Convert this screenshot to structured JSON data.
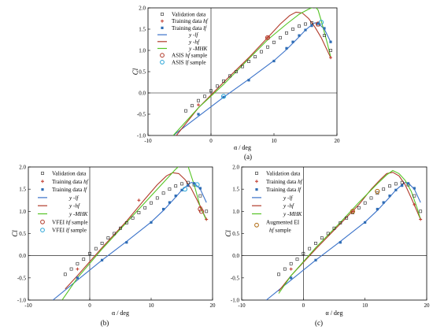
{
  "figure": {
    "panel_labels": [
      "(a)",
      "(b)",
      "(c)"
    ]
  },
  "colors": {
    "validation": "#222222",
    "train_hf": "#c0392b",
    "train_lf": "#2f6db5",
    "y_lf": "#3a72c9",
    "y_hf": "#b13a2a",
    "y_mhk": "#55c424",
    "sample_hf": "#b13a2a",
    "sample_lf": "#2aa5d8",
    "sample_ei": "#b06a10"
  },
  "chart_data": [
    {
      "type": "line",
      "panel": "(a)",
      "xlabel": "α / deg",
      "ylabel": "Cl",
      "xlim": [
        -10,
        20
      ],
      "ylim": [
        -1.0,
        2.0
      ],
      "xticks": [
        -10,
        0,
        10,
        20
      ],
      "yticks": [
        -1.0,
        -0.5,
        0.0,
        0.5,
        1.0,
        1.5,
        2.0
      ],
      "legend": {
        "placement": "top-left",
        "entries": [
          "Validation data",
          "Training data hf",
          "Training data lf",
          "y -lf",
          "y -hf",
          "y -MHK",
          "ASIS hf sample",
          "ASIS lf sample"
        ]
      },
      "validation": {
        "x": [
          -4,
          -3,
          -2,
          -1,
          0,
          1,
          2,
          3,
          4,
          5,
          6,
          7,
          8,
          9,
          10,
          11,
          12,
          13,
          14,
          15,
          16,
          17,
          18,
          19
        ],
        "y": [
          -0.42,
          -0.3,
          -0.18,
          -0.08,
          0.05,
          0.16,
          0.28,
          0.4,
          0.5,
          0.62,
          0.74,
          0.85,
          0.97,
          1.08,
          1.19,
          1.3,
          1.41,
          1.5,
          1.57,
          1.62,
          1.65,
          1.6,
          1.35,
          1.0
        ]
      },
      "training_hf": {
        "x": [
          -2,
          9,
          19
        ],
        "y": [
          -0.28,
          1.3,
          0.83
        ]
      },
      "training_lf": {
        "x": [
          -2,
          2,
          6,
          10,
          12,
          13,
          14,
          15,
          16,
          17,
          18,
          19
        ],
        "y": [
          -0.5,
          -0.1,
          0.3,
          0.75,
          1.05,
          1.2,
          1.35,
          1.48,
          1.58,
          1.63,
          1.52,
          1.2
        ]
      },
      "y_lf": {
        "x": [
          -6,
          -2,
          2,
          6,
          10,
          12,
          14,
          15,
          16,
          16.5,
          17,
          18,
          19
        ],
        "y": [
          -1.0,
          -0.55,
          -0.1,
          0.32,
          0.76,
          1.02,
          1.32,
          1.48,
          1.6,
          1.65,
          1.64,
          1.5,
          1.2
        ]
      },
      "y_hf": {
        "x": [
          -5.5,
          -2,
          2,
          6,
          9,
          11,
          12.5,
          13.5,
          14.5,
          15.5,
          16.5,
          17.5,
          19
        ],
        "y": [
          -1.0,
          -0.35,
          0.25,
          0.83,
          1.3,
          1.62,
          1.82,
          1.9,
          1.88,
          1.75,
          1.55,
          1.3,
          0.83
        ]
      },
      "y_mhk": {
        "x": [
          -6,
          -2,
          2,
          6,
          9,
          12,
          14,
          15.5,
          16.5,
          17,
          17.5,
          18.5,
          19
        ],
        "y": [
          -1.0,
          -0.35,
          0.2,
          0.8,
          1.25,
          1.62,
          1.85,
          1.97,
          2.03,
          1.95,
          1.7,
          1.15,
          0.85
        ]
      },
      "samples_primary": {
        "x": [
          9,
          17
        ],
        "y": [
          1.3,
          1.62
        ]
      },
      "samples_secondary": {
        "x": [
          2,
          17.5
        ],
        "y": [
          -0.08,
          1.66
        ]
      }
    },
    {
      "type": "line",
      "panel": "(b)",
      "xlabel": "α / deg",
      "ylabel": "Cl",
      "xlim": [
        -10,
        20
      ],
      "ylim": [
        -1.0,
        2.0
      ],
      "xticks": [
        -10,
        0,
        10,
        20
      ],
      "yticks": [
        -1.0,
        -0.5,
        0.0,
        0.5,
        1.0,
        1.5,
        2.0
      ],
      "legend": {
        "placement": "top-left",
        "entries": [
          "Validation data",
          "Training data hf",
          "Training data lf",
          "y -lf",
          "y -hf",
          "y -MHK",
          "VFEI hf sample",
          "VFEI lf sample"
        ]
      },
      "validation": {
        "x": [
          -4,
          -3,
          -2,
          -1,
          0,
          1,
          2,
          3,
          4,
          5,
          6,
          7,
          8,
          9,
          10,
          11,
          12,
          13,
          14,
          15,
          16,
          17,
          18,
          19
        ],
        "y": [
          -0.42,
          -0.3,
          -0.18,
          -0.08,
          0.05,
          0.16,
          0.28,
          0.4,
          0.5,
          0.62,
          0.74,
          0.85,
          0.97,
          1.08,
          1.19,
          1.3,
          1.41,
          1.5,
          1.57,
          1.62,
          1.65,
          1.6,
          1.35,
          1.0
        ]
      },
      "training_hf": {
        "x": [
          -2,
          8,
          18,
          19
        ],
        "y": [
          -0.3,
          1.25,
          1.1,
          0.82
        ]
      },
      "training_lf": {
        "x": [
          -2,
          2,
          6,
          10,
          12,
          13,
          14,
          15,
          16,
          17,
          18
        ],
        "y": [
          -0.5,
          -0.1,
          0.3,
          0.75,
          1.05,
          1.2,
          1.35,
          1.48,
          1.58,
          1.63,
          1.52
        ]
      },
      "y_lf": {
        "x": [
          -6,
          -2,
          2,
          6,
          10,
          12,
          14,
          15,
          16,
          16.5,
          17,
          18,
          19
        ],
        "y": [
          -1.0,
          -0.55,
          -0.1,
          0.32,
          0.76,
          1.02,
          1.32,
          1.48,
          1.6,
          1.65,
          1.64,
          1.5,
          1.2
        ]
      },
      "y_hf": {
        "x": [
          -4,
          -2,
          2,
          6,
          9,
          11,
          12.5,
          13.5,
          14.5,
          15.5,
          16.5,
          17.5,
          19
        ],
        "y": [
          -0.75,
          -0.45,
          0.18,
          0.78,
          1.28,
          1.6,
          1.8,
          1.87,
          1.85,
          1.72,
          1.52,
          1.25,
          0.82
        ]
      },
      "y_mhk": {
        "x": [
          -4.5,
          -2,
          2,
          6,
          9,
          12,
          14,
          15,
          15.5,
          16,
          17,
          18,
          19
        ],
        "y": [
          -1.0,
          -0.5,
          0.15,
          0.75,
          1.2,
          1.65,
          1.95,
          2.08,
          2.12,
          2.02,
          1.6,
          1.1,
          0.8
        ]
      },
      "samples_primary": {
        "x": [
          18,
          18.2
        ],
        "y": [
          1.05,
          1.0
        ]
      },
      "samples_secondary": {
        "x": [
          15.5,
          17.5
        ],
        "y": [
          1.5,
          1.6
        ]
      }
    },
    {
      "type": "line",
      "panel": "(c)",
      "xlabel": "α / deg",
      "ylabel": "Cl",
      "xlim": [
        -10,
        20
      ],
      "ylim": [
        -1.0,
        2.0
      ],
      "xticks": [
        -10,
        0,
        10,
        20
      ],
      "yticks": [
        -1.0,
        -0.5,
        0.0,
        0.5,
        1.0,
        1.5,
        2.0
      ],
      "legend": {
        "placement": "top-left",
        "entries": [
          "Validation data",
          "Training data hf",
          "Training data lf",
          "y -lf",
          "y -hf",
          "y -MHK",
          "Augmented EI",
          "hf sample"
        ]
      },
      "validation": {
        "x": [
          -4,
          -3,
          -2,
          -1,
          0,
          1,
          2,
          3,
          4,
          5,
          6,
          7,
          8,
          9,
          10,
          11,
          12,
          13,
          14,
          15,
          16,
          17,
          18,
          19
        ],
        "y": [
          -0.42,
          -0.3,
          -0.18,
          -0.08,
          0.05,
          0.16,
          0.28,
          0.4,
          0.5,
          0.62,
          0.74,
          0.85,
          0.97,
          1.08,
          1.19,
          1.3,
          1.41,
          1.5,
          1.57,
          1.62,
          1.65,
          1.6,
          1.35,
          1.0
        ]
      },
      "training_hf": {
        "x": [
          -2,
          8,
          18,
          19
        ],
        "y": [
          -0.3,
          1.0,
          1.15,
          0.82
        ]
      },
      "training_lf": {
        "x": [
          -2,
          2,
          6,
          10,
          12,
          13,
          14,
          15,
          16,
          17,
          18
        ],
        "y": [
          -0.5,
          -0.1,
          0.3,
          0.75,
          1.05,
          1.2,
          1.35,
          1.48,
          1.58,
          1.63,
          1.52
        ]
      },
      "y_lf": {
        "x": [
          -6,
          -2,
          2,
          6,
          10,
          12,
          14,
          15,
          16,
          16.5,
          17,
          18,
          19
        ],
        "y": [
          -1.0,
          -0.55,
          -0.1,
          0.32,
          0.76,
          1.02,
          1.32,
          1.48,
          1.6,
          1.65,
          1.64,
          1.5,
          1.2
        ]
      },
      "y_hf": {
        "x": [
          -4,
          -2,
          2,
          6,
          9,
          11,
          12.5,
          13.5,
          14.5,
          15.5,
          16.5,
          17.5,
          19
        ],
        "y": [
          -0.8,
          -0.45,
          0.15,
          0.72,
          1.15,
          1.5,
          1.72,
          1.85,
          1.88,
          1.8,
          1.6,
          1.3,
          0.82
        ]
      },
      "y_mhk": {
        "x": [
          -4,
          -2,
          2,
          6,
          9,
          12,
          13.5,
          14.5,
          15.5,
          16.5,
          17.5,
          18.5,
          19
        ],
        "y": [
          -0.85,
          -0.45,
          0.18,
          0.75,
          1.2,
          1.62,
          1.82,
          1.92,
          1.85,
          1.7,
          1.45,
          1.05,
          0.82
        ]
      },
      "samples_primary": {
        "x": [
          8,
          12
        ],
        "y": [
          1.0,
          1.45
        ]
      },
      "samples_secondary": {
        "x": [],
        "y": []
      }
    }
  ]
}
